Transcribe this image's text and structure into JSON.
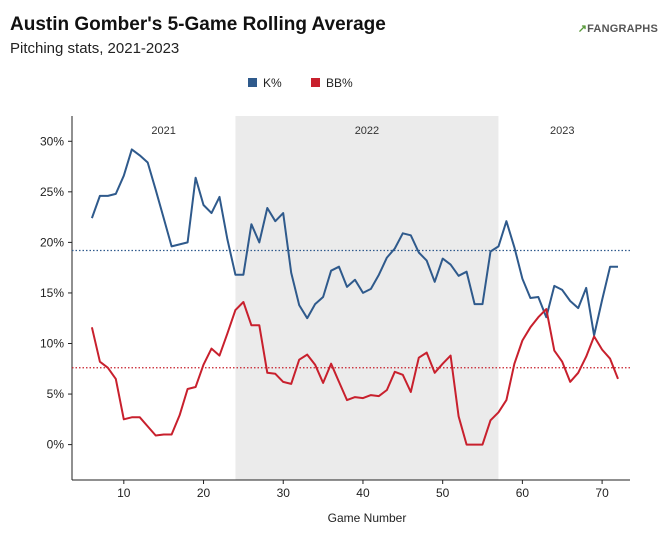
{
  "header": {
    "title": "Austin Gomber's 5-Game Rolling Average",
    "subtitle": "Pitching stats, 2021-2023",
    "logo_mark": "↗",
    "logo_text": "FANGRAPHS"
  },
  "chart_data": {
    "type": "line",
    "title": "Austin Gomber's 5-Game Rolling Average",
    "subtitle": "Pitching stats, 2021-2023",
    "xlabel": "Game Number",
    "ylabel": "",
    "xlim": [
      3.5,
      73.5
    ],
    "ylim": [
      -3.5,
      32.5
    ],
    "x_ticks": [
      10,
      20,
      30,
      40,
      50,
      60,
      70
    ],
    "y_ticks": [
      0,
      5,
      10,
      15,
      20,
      25,
      30
    ],
    "y_tick_labels": [
      "0%",
      "5%",
      "10%",
      "15%",
      "20%",
      "25%",
      "30%"
    ],
    "legend_position": "top-center",
    "grid": false,
    "shaded_region": {
      "x_start": 24,
      "x_end": 57,
      "color": "#ebebeb"
    },
    "era_labels": [
      {
        "text": "2021",
        "x": 15
      },
      {
        "text": "2022",
        "x": 40.5
      },
      {
        "text": "2023",
        "x": 65
      }
    ],
    "reference_lines": [
      {
        "series": "K%",
        "y": 19.2,
        "style": "dotted"
      },
      {
        "series": "BB%",
        "y": 7.6,
        "style": "dotted"
      }
    ],
    "series": [
      {
        "name": "K%",
        "color": "#2f5a8c",
        "x": [
          6,
          7,
          8,
          9,
          10,
          11,
          12,
          13,
          14,
          15,
          16,
          17,
          18,
          19,
          20,
          21,
          22,
          23,
          24,
          25,
          26,
          27,
          28,
          29,
          30,
          31,
          32,
          33,
          34,
          35,
          36,
          37,
          38,
          39,
          40,
          41,
          42,
          43,
          44,
          45,
          46,
          47,
          48,
          49,
          50,
          51,
          52,
          53,
          54,
          55,
          56,
          57,
          58,
          59,
          60,
          61,
          62,
          63,
          64,
          65,
          66,
          67,
          68,
          69,
          70,
          71,
          72
        ],
        "y": [
          22.4,
          24.6,
          24.6,
          24.8,
          26.6,
          29.2,
          28.6,
          27.9,
          25.2,
          22.4,
          19.6,
          19.8,
          20.0,
          26.4,
          23.7,
          22.9,
          24.5,
          20.3,
          16.8,
          16.8,
          21.8,
          20.0,
          23.4,
          22.1,
          22.9,
          17.0,
          13.8,
          12.5,
          13.9,
          14.6,
          17.2,
          17.6,
          15.6,
          16.3,
          15.0,
          15.4,
          16.8,
          18.5,
          19.4,
          20.9,
          20.7,
          19.0,
          18.2,
          16.1,
          18.4,
          17.8,
          16.7,
          17.1,
          13.9,
          13.9,
          19.1,
          19.6,
          22.1,
          19.5,
          16.4,
          14.5,
          14.6,
          12.6,
          15.7,
          15.3,
          14.2,
          13.5,
          15.5,
          10.8,
          14.3,
          17.6,
          17.6
        ]
      },
      {
        "name": "BB%",
        "color": "#c8202d",
        "x": [
          6,
          7,
          8,
          9,
          10,
          11,
          12,
          13,
          14,
          15,
          16,
          17,
          18,
          19,
          20,
          21,
          22,
          23,
          24,
          25,
          26,
          27,
          28,
          29,
          30,
          31,
          32,
          33,
          34,
          35,
          36,
          37,
          38,
          39,
          40,
          41,
          42,
          43,
          44,
          45,
          46,
          47,
          48,
          49,
          50,
          51,
          52,
          53,
          54,
          55,
          56,
          57,
          58,
          59,
          60,
          61,
          62,
          63,
          64,
          65,
          66,
          67,
          68,
          69,
          70,
          71,
          72
        ],
        "y": [
          11.6,
          8.2,
          7.6,
          6.5,
          2.5,
          2.7,
          2.7,
          1.8,
          0.9,
          1.0,
          1.0,
          2.9,
          5.5,
          5.7,
          7.9,
          9.5,
          8.8,
          11.0,
          13.3,
          14.1,
          11.8,
          11.8,
          7.1,
          7.0,
          6.2,
          6.0,
          8.4,
          8.9,
          7.9,
          6.1,
          8.0,
          6.2,
          4.4,
          4.7,
          4.6,
          4.9,
          4.8,
          5.4,
          7.2,
          6.9,
          5.2,
          8.6,
          9.1,
          7.1,
          8.0,
          8.8,
          2.8,
          0.0,
          0.0,
          0.0,
          2.4,
          3.2,
          4.4,
          8.0,
          10.3,
          11.6,
          12.6,
          13.4,
          9.3,
          8.2,
          6.2,
          7.1,
          8.7,
          10.7,
          9.4,
          8.5,
          6.5
        ]
      }
    ]
  }
}
